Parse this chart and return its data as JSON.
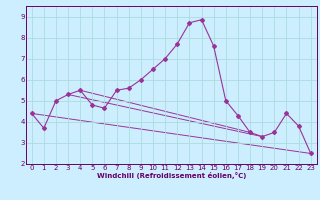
{
  "xlabel": "Windchill (Refroidissement éolien,°C)",
  "bg_color": "#cceeff",
  "grid_color": "#aadddd",
  "line_color": "#993399",
  "spine_color": "#660066",
  "xlim": [
    -0.5,
    23.5
  ],
  "ylim": [
    2,
    9.5
  ],
  "yticks": [
    2,
    3,
    4,
    5,
    6,
    7,
    8,
    9
  ],
  "xticks": [
    0,
    1,
    2,
    3,
    4,
    5,
    6,
    7,
    8,
    9,
    10,
    11,
    12,
    13,
    14,
    15,
    16,
    17,
    18,
    19,
    20,
    21,
    22,
    23
  ],
  "main_x": [
    0,
    1,
    2,
    3,
    4,
    5,
    6,
    7,
    8,
    9,
    10,
    11,
    12,
    13,
    14,
    15,
    16,
    17,
    18,
    19,
    20,
    21,
    22,
    23
  ],
  "main_y": [
    4.4,
    3.7,
    5.0,
    5.3,
    5.5,
    4.8,
    4.65,
    5.5,
    5.6,
    6.0,
    6.5,
    7.0,
    7.7,
    8.7,
    8.85,
    7.6,
    5.0,
    4.3,
    3.5,
    3.3,
    3.5,
    4.4,
    3.8,
    2.5
  ],
  "line2_x": [
    0,
    23
  ],
  "line2_y": [
    4.4,
    2.5
  ],
  "line3_x": [
    3,
    19
  ],
  "line3_y": [
    5.3,
    3.3
  ],
  "line4_x": [
    4,
    18
  ],
  "line4_y": [
    5.5,
    3.5
  ],
  "tick_fontsize": 5,
  "xlabel_fontsize": 5,
  "marker_size": 2.0
}
